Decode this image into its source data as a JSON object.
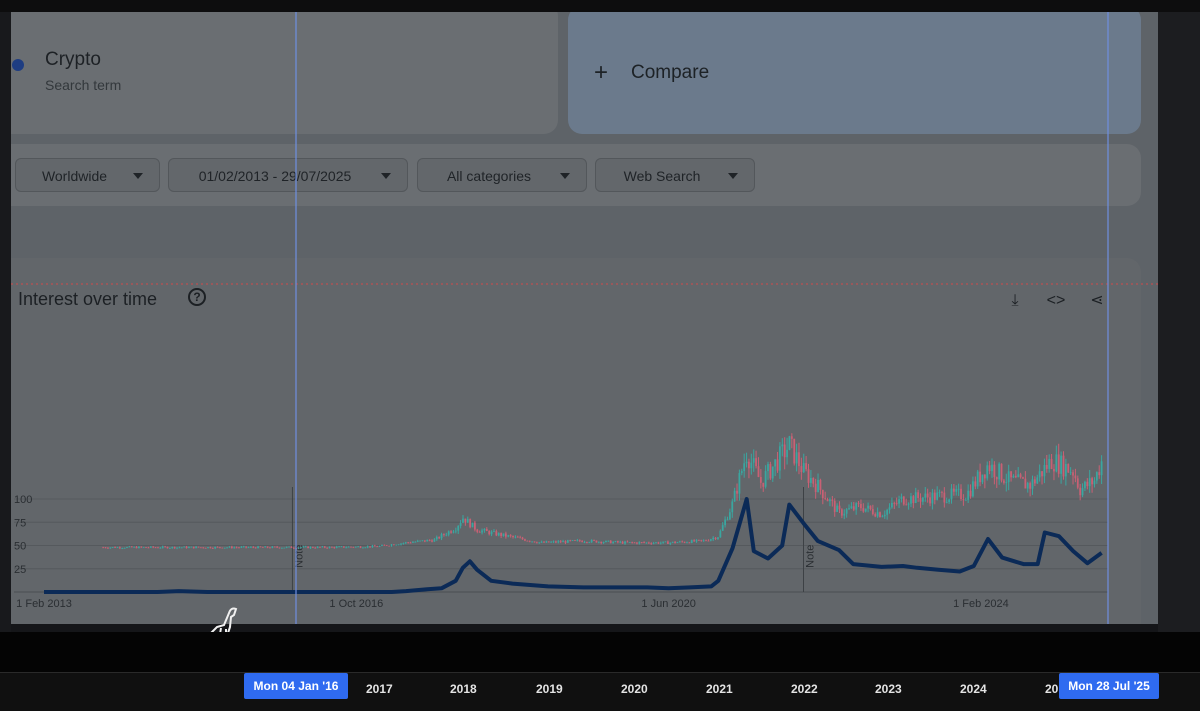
{
  "search_term": {
    "name": "Crypto",
    "type": "Search term",
    "dot_color": "#1e3d82"
  },
  "compare": {
    "icon": "plus-icon",
    "label": "Compare"
  },
  "filters": [
    {
      "label": "Worldwide"
    },
    {
      "label": "01/02/2013 - 29/07/2025"
    },
    {
      "label": "All categories"
    },
    {
      "label": "Web Search"
    }
  ],
  "interest": {
    "title": "Interest over time",
    "help_icon": "?",
    "icons": [
      "download-icon",
      "embed-icon",
      "share-icon"
    ]
  },
  "chart_data": {
    "type": "line",
    "y_ticks": [
      25,
      50,
      75,
      100
    ],
    "ylim": [
      0,
      100
    ],
    "x_ticks": [
      "1 Feb 2013",
      "1 Oct 2016",
      "1 Jun 2020",
      "1 Feb 2024"
    ],
    "grid": true,
    "annotations": [
      "Note",
      "Note"
    ],
    "series": [
      {
        "color": "#0b2a57",
        "points": [
          [
            "2013-02",
            0
          ],
          [
            "2014-06",
            0
          ],
          [
            "2014-09",
            1
          ],
          [
            "2015-01",
            0
          ],
          [
            "2016-06",
            0
          ],
          [
            "2016-10",
            0
          ],
          [
            "2017-03",
            0
          ],
          [
            "2017-05",
            1
          ],
          [
            "2017-08",
            3
          ],
          [
            "2017-10",
            4
          ],
          [
            "2017-12",
            12
          ],
          [
            "2018-01",
            26
          ],
          [
            "2018-02",
            33
          ],
          [
            "2018-03",
            24
          ],
          [
            "2018-05",
            12
          ],
          [
            "2018-08",
            9
          ],
          [
            "2019-01",
            6
          ],
          [
            "2019-06",
            5
          ],
          [
            "2019-12",
            5
          ],
          [
            "2020-03",
            5
          ],
          [
            "2020-06",
            4
          ],
          [
            "2020-09",
            5
          ],
          [
            "2020-12",
            6
          ],
          [
            "2021-01",
            12
          ],
          [
            "2021-03",
            47
          ],
          [
            "2021-05",
            100
          ],
          [
            "2021-06",
            44
          ],
          [
            "2021-08",
            36
          ],
          [
            "2021-10",
            50
          ],
          [
            "2021-11",
            94
          ],
          [
            "2022-01",
            74
          ],
          [
            "2022-03",
            55
          ],
          [
            "2022-06",
            45
          ],
          [
            "2022-08",
            30
          ],
          [
            "2022-12",
            27
          ],
          [
            "2023-03",
            28
          ],
          [
            "2023-05",
            26
          ],
          [
            "2023-08",
            24
          ],
          [
            "2023-11",
            22
          ],
          [
            "2024-01",
            28
          ],
          [
            "2024-03",
            57
          ],
          [
            "2024-05",
            37
          ],
          [
            "2024-08",
            30
          ],
          [
            "2024-10",
            30
          ],
          [
            "2024-11",
            64
          ],
          [
            "2025-01",
            60
          ],
          [
            "2025-03",
            44
          ],
          [
            "2025-05",
            31
          ],
          [
            "2025-07",
            42
          ]
        ]
      }
    ]
  },
  "overlay": {
    "type": "candlestick",
    "up_color": "#3aa6a0",
    "down_color": "#c96074",
    "path": [
      [
        "2013-10",
        48
      ],
      [
        "2016-06",
        48
      ],
      [
        "2017-01",
        49
      ],
      [
        "2017-05",
        53
      ],
      [
        "2017-09",
        56
      ],
      [
        "2017-12",
        69
      ],
      [
        "2018-01",
        80
      ],
      [
        "2018-03",
        67
      ],
      [
        "2018-06",
        62
      ],
      [
        "2018-12",
        53
      ],
      [
        "2019-06",
        55
      ],
      [
        "2019-12",
        53
      ],
      [
        "2020-06",
        53
      ],
      [
        "2020-11",
        55
      ],
      [
        "2021-01",
        60
      ],
      [
        "2021-03",
        95
      ],
      [
        "2021-05",
        150
      ],
      [
        "2021-07",
        118
      ],
      [
        "2021-11",
        158
      ],
      [
        "2022-01",
        130
      ],
      [
        "2022-03",
        114
      ],
      [
        "2022-06",
        85
      ],
      [
        "2022-09",
        92
      ],
      [
        "2022-12",
        84
      ],
      [
        "2023-03",
        100
      ],
      [
        "2023-08",
        103
      ],
      [
        "2023-12",
        105
      ],
      [
        "2024-03",
        137
      ],
      [
        "2024-06",
        120
      ],
      [
        "2024-09",
        115
      ],
      [
        "2024-12",
        142
      ],
      [
        "2025-03",
        130
      ],
      [
        "2025-04",
        110
      ],
      [
        "2025-06",
        120
      ],
      [
        "2025-07",
        140
      ]
    ]
  },
  "timeline": {
    "start_badge": "Mon 04 Jan '16",
    "end_badge": "Mon 28 Jul '25",
    "years": [
      "2017",
      "2018",
      "2019",
      "2020",
      "2021",
      "2022",
      "2023",
      "2024",
      "20"
    ]
  }
}
